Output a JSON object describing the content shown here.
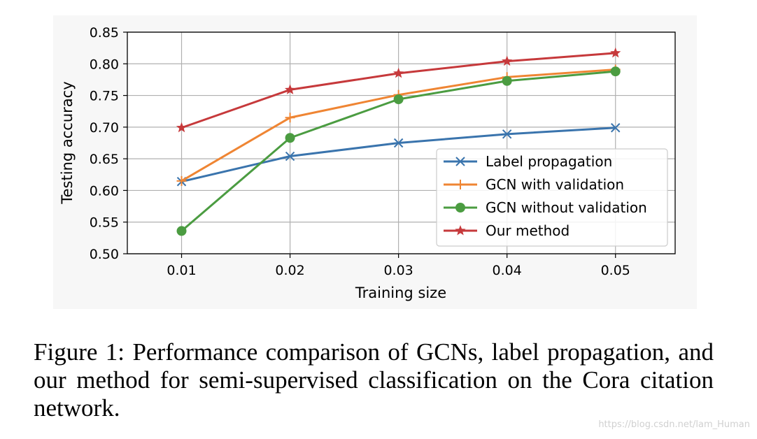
{
  "chart_data": {
    "type": "line",
    "xlabel": "Training size",
    "ylabel": "Testing accuracy",
    "x": [
      0.01,
      0.02,
      0.03,
      0.04,
      0.05
    ],
    "x_tick_labels": [
      "0.01",
      "0.02",
      "0.03",
      "0.04",
      "0.05"
    ],
    "y_tick_labels": [
      "0.50",
      "0.55",
      "0.60",
      "0.65",
      "0.70",
      "0.75",
      "0.80",
      "0.85"
    ],
    "y_ticks": [
      0.5,
      0.55,
      0.6,
      0.65,
      0.7,
      0.75,
      0.8,
      0.85
    ],
    "xlim": [
      0.005,
      0.0555
    ],
    "ylim": [
      0.5,
      0.85
    ],
    "grid": true,
    "legend_position": "lower-right",
    "series": [
      {
        "name": "Label propagation",
        "color": "#3a74ad",
        "marker": "x",
        "values": [
          0.614,
          0.654,
          0.675,
          0.689,
          0.699
        ]
      },
      {
        "name": "GCN with validation",
        "color": "#ef8533",
        "marker": "plus",
        "values": [
          0.615,
          0.715,
          0.751,
          0.779,
          0.791
        ]
      },
      {
        "name": "GCN without validation",
        "color": "#4b9c41",
        "marker": "circle",
        "values": [
          0.536,
          0.683,
          0.744,
          0.773,
          0.788
        ]
      },
      {
        "name": "Our method",
        "color": "#c6393b",
        "marker": "star",
        "values": [
          0.699,
          0.759,
          0.785,
          0.804,
          0.817
        ]
      }
    ]
  },
  "caption": "Figure 1: Performance comparison of GCNs, label propagation, and our method for semi-supervised classification on the Cora citation network.",
  "watermark": "https://blog.csdn.net/lam_Human"
}
